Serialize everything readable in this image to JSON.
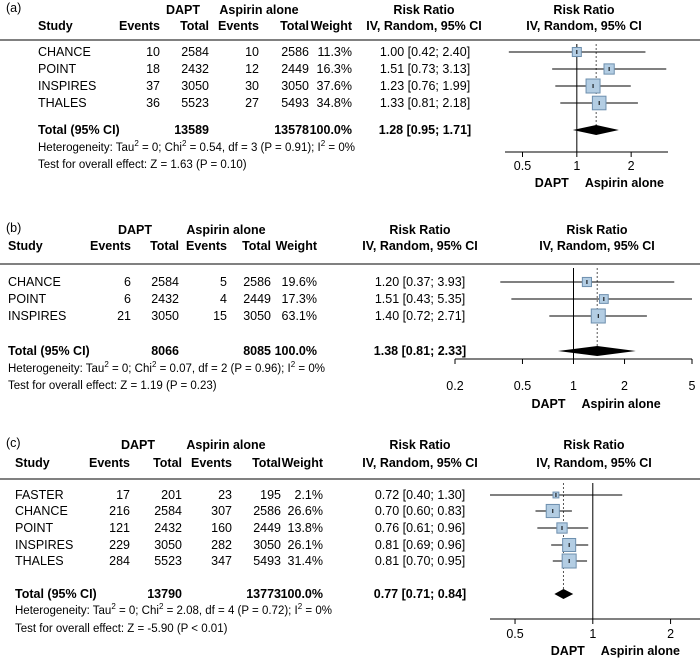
{
  "chart_data": [
    {
      "type": "forest",
      "panel_label": "(a)",
      "headers": {
        "study": "Study",
        "dapt": "DAPT",
        "aspirin": "Aspirin alone",
        "events": "Events",
        "total": "Total",
        "weight": "Weight",
        "rr": "Risk Ratio",
        "method": "IV, Random, 95% CI"
      },
      "studies": [
        {
          "name": "CHANCE",
          "dapt_events": "10",
          "dapt_total": "2584",
          "asp_events": "10",
          "asp_total": "2586",
          "weight": "11.3%",
          "ci_text": "1.00 [0.42; 2.40]",
          "rr": 1.0,
          "lo": 0.42,
          "hi": 2.4,
          "w": 11.3
        },
        {
          "name": "POINT",
          "dapt_events": "18",
          "dapt_total": "2432",
          "asp_events": "12",
          "asp_total": "2449",
          "weight": "16.3%",
          "ci_text": "1.51 [0.73; 3.13]",
          "rr": 1.51,
          "lo": 0.73,
          "hi": 3.13,
          "w": 16.3
        },
        {
          "name": "INSPIRES",
          "dapt_events": "37",
          "dapt_total": "3050",
          "asp_events": "30",
          "asp_total": "3050",
          "weight": "37.6%",
          "ci_text": "1.23 [0.76; 1.99]",
          "rr": 1.23,
          "lo": 0.76,
          "hi": 1.99,
          "w": 37.6
        },
        {
          "name": "THALES",
          "dapt_events": "36",
          "dapt_total": "5523",
          "asp_events": "27",
          "asp_total": "5493",
          "weight": "34.8%",
          "ci_text": "1.33 [0.81; 2.18]",
          "rr": 1.33,
          "lo": 0.81,
          "hi": 2.18,
          "w": 34.8
        }
      ],
      "total": {
        "label": "Total (95% CI)",
        "dapt_total": "13589",
        "asp_total": "13578",
        "weight": "100.0%",
        "ci_text": "1.28 [0.95; 1.71]",
        "rr": 1.28,
        "lo": 0.95,
        "hi": 1.71
      },
      "heterogeneity": {
        "prefix": "Heterogeneity: Tau",
        "mid": " = 0; Chi",
        "suffix": " = 0.54, df = 3 (P = 0.91); I",
        "end": " = 0%"
      },
      "overall": "Test for overall effect: Z = 1.63 (P = 0.10)",
      "axis": {
        "min": 0.4,
        "max": 3.2,
        "ticks": [
          0.5,
          1,
          2
        ],
        "tick_labels": [
          "0.5",
          "1",
          "2"
        ],
        "left_label": "DAPT",
        "right_label": "Aspirin alone",
        "scale": "log"
      }
    },
    {
      "type": "forest",
      "panel_label": "(b)",
      "headers": {
        "study": "Study",
        "dapt": "DAPT",
        "aspirin": "Aspirin alone",
        "events": "Events",
        "total": "Total",
        "weight": "Weight",
        "rr": "Risk Ratio",
        "method": "IV, Random, 95% CI"
      },
      "studies": [
        {
          "name": "CHANCE",
          "dapt_events": "6",
          "dapt_total": "2584",
          "asp_events": "5",
          "asp_total": "2586",
          "weight": "19.6%",
          "ci_text": "1.20 [0.37; 3.93]",
          "rr": 1.2,
          "lo": 0.37,
          "hi": 3.93,
          "w": 19.6
        },
        {
          "name": "POINT",
          "dapt_events": "6",
          "dapt_total": "2432",
          "asp_events": "4",
          "asp_total": "2449",
          "weight": "17.3%",
          "ci_text": "1.51 [0.43; 5.35]",
          "rr": 1.51,
          "lo": 0.43,
          "hi": 5.35,
          "w": 17.3
        },
        {
          "name": "INSPIRES",
          "dapt_events": "21",
          "dapt_total": "3050",
          "asp_events": "15",
          "asp_total": "3050",
          "weight": "63.1%",
          "ci_text": "1.40 [0.72; 2.71]",
          "rr": 1.4,
          "lo": 0.72,
          "hi": 2.71,
          "w": 63.1
        }
      ],
      "total": {
        "label": "Total (95% CI)",
        "dapt_total": "8066",
        "asp_total": "8085",
        "weight": "100.0%",
        "ci_text": "1.38 [0.81; 2.33]",
        "rr": 1.38,
        "lo": 0.81,
        "hi": 2.33
      },
      "heterogeneity": {
        "prefix": "Heterogeneity: Tau",
        "mid": " = 0; Chi",
        "suffix": " = 0.07, df = 2 (P = 0.96); I",
        "end": " = 0%"
      },
      "overall": "Test for overall effect: Z = 1.19 (P = 0.23)",
      "axis": {
        "min": 0.2,
        "max": 5,
        "ticks": [
          0.2,
          0.5,
          1,
          2,
          5
        ],
        "tick_labels": [
          "0.2",
          "0.5",
          "1",
          "2",
          "5"
        ],
        "left_label": "DAPT",
        "right_label": "Aspirin alone",
        "scale": "log"
      }
    },
    {
      "type": "forest",
      "panel_label": "(c)",
      "headers": {
        "study": "Study",
        "dapt": "DAPT",
        "aspirin": "Aspirin alone",
        "events": "Events",
        "total": "Total",
        "weight": "Weight",
        "rr": "Risk Ratio",
        "method": "IV, Random, 95% CI"
      },
      "studies": [
        {
          "name": "FASTER",
          "dapt_events": "17",
          "dapt_total": "201",
          "asp_events": "23",
          "asp_total": "195",
          "weight": "2.1%",
          "ci_text": "0.72 [0.40; 1.30]",
          "rr": 0.72,
          "lo": 0.4,
          "hi": 1.3,
          "w": 2.1
        },
        {
          "name": "CHANCE",
          "dapt_events": "216",
          "dapt_total": "2584",
          "asp_events": "307",
          "asp_total": "2586",
          "weight": "26.6%",
          "ci_text": "0.70 [0.60; 0.83]",
          "rr": 0.7,
          "lo": 0.6,
          "hi": 0.83,
          "w": 26.6
        },
        {
          "name": "POINT",
          "dapt_events": "121",
          "dapt_total": "2432",
          "asp_events": "160",
          "asp_total": "2449",
          "weight": "13.8%",
          "ci_text": "0.76 [0.61; 0.96]",
          "rr": 0.76,
          "lo": 0.61,
          "hi": 0.96,
          "w": 13.8
        },
        {
          "name": "INSPIRES",
          "dapt_events": "229",
          "dapt_total": "3050",
          "asp_events": "282",
          "asp_total": "3050",
          "weight": "26.1%",
          "ci_text": "0.81 [0.69; 0.96]",
          "rr": 0.81,
          "lo": 0.69,
          "hi": 0.96,
          "w": 26.1
        },
        {
          "name": "THALES",
          "dapt_events": "284",
          "dapt_total": "5523",
          "asp_events": "347",
          "asp_total": "5493",
          "weight": "31.4%",
          "ci_text": "0.81 [0.70; 0.95]",
          "rr": 0.81,
          "lo": 0.7,
          "hi": 0.95,
          "w": 31.4
        }
      ],
      "total": {
        "label": "Total (95% CI)",
        "dapt_total": "13790",
        "asp_total": "13773",
        "weight": "100.0%",
        "ci_text": "0.77 [0.71; 0.84]",
        "rr": 0.77,
        "lo": 0.71,
        "hi": 0.84
      },
      "heterogeneity": {
        "prefix": "Heterogeneity: Tau",
        "mid": " = 0; Chi",
        "suffix": " = 2.08, df = 4 (P = 0.72); I",
        "end": " = 0%"
      },
      "overall": "Test for overall effect: Z = -5.90 (P < 0.01)",
      "axis": {
        "min": 0.4,
        "max": 2.6,
        "ticks": [
          0.5,
          1,
          2
        ],
        "tick_labels": [
          "0.5",
          "1",
          "2"
        ],
        "left_label": "DAPT",
        "right_label": "Aspirin alone",
        "scale": "log"
      }
    }
  ],
  "colors": {
    "box_fill": "#b3cde3",
    "box_stroke": "#6e8fae",
    "line": "#000000",
    "dotted": "#555555"
  }
}
